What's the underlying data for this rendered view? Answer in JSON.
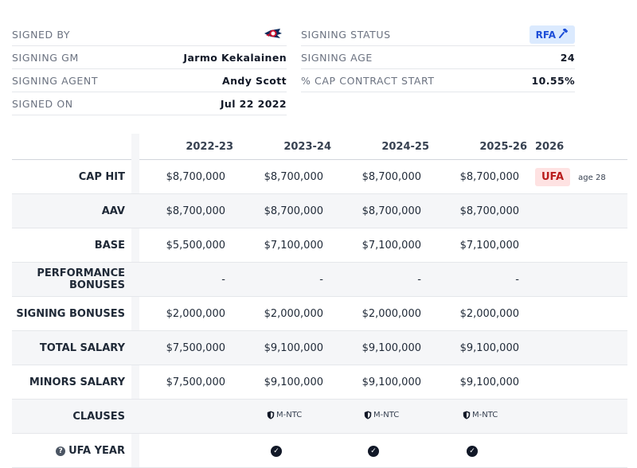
{
  "info_left": [
    {
      "label": "SIGNED BY",
      "value": "",
      "logo": "columbus-blue-jackets-logo"
    },
    {
      "label": "SIGNING GM",
      "value": "Jarmo Kekalainen"
    },
    {
      "label": "SIGNING AGENT",
      "value": "Andy Scott"
    },
    {
      "label": "SIGNED ON",
      "value": "Jul 22 2022"
    }
  ],
  "info_right": [
    {
      "label": "SIGNING STATUS",
      "value": "RFA",
      "icon": "gavel-icon"
    },
    {
      "label": "SIGNING AGE",
      "value": "24"
    },
    {
      "label": "% CAP CONTRACT START",
      "value": "10.55%"
    }
  ],
  "table": {
    "headers": [
      "2022-23",
      "2023-24",
      "2024-25",
      "2025-26",
      "2026"
    ],
    "rows": [
      {
        "label": "CAP HIT",
        "values": [
          "$8,700,000",
          "$8,700,000",
          "$8,700,000",
          "$8,700,000"
        ],
        "extra_badge": "UFA",
        "extra_note": "age 28"
      },
      {
        "label": "AAV",
        "values": [
          "$8,700,000",
          "$8,700,000",
          "$8,700,000",
          "$8,700,000"
        ]
      },
      {
        "label": "BASE",
        "values": [
          "$5,500,000",
          "$7,100,000",
          "$7,100,000",
          "$7,100,000"
        ]
      },
      {
        "label": "PERFORMANCE BONUSES",
        "values": [
          "-",
          "-",
          "-",
          "-"
        ]
      },
      {
        "label": "SIGNING BONUSES",
        "values": [
          "$2,000,000",
          "$2,000,000",
          "$2,000,000",
          "$2,000,000"
        ]
      },
      {
        "label": "TOTAL SALARY",
        "values": [
          "$7,500,000",
          "$9,100,000",
          "$9,100,000",
          "$9,100,000"
        ]
      },
      {
        "label": "MINORS SALARY",
        "values": [
          "$7,500,000",
          "$9,100,000",
          "$9,100,000",
          "$9,100,000"
        ]
      },
      {
        "label": "CLAUSES",
        "values": [
          "",
          "M-NTC",
          "M-NTC",
          "M-NTC"
        ]
      },
      {
        "label": "UFA YEAR",
        "values": [
          "",
          "check",
          "check",
          "check"
        ]
      }
    ]
  },
  "colors": {
    "rfa_bg": "#dbeafe",
    "rfa_text": "#1d4ed8",
    "ufa_bg": "#fee2e2",
    "ufa_text": "#b91c1c",
    "stripe": "#f5f6f8"
  }
}
